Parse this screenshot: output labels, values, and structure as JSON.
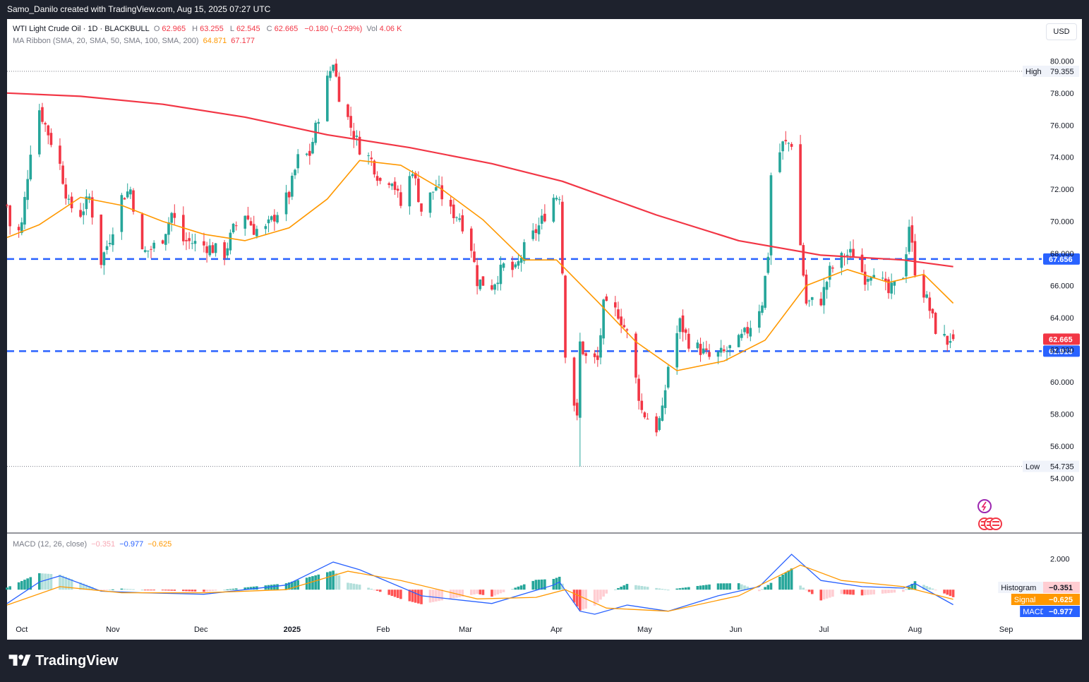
{
  "credit": "Samo_Danilo created with TradingView.com, Aug 15, 2025 07:27 UTC",
  "brand": "TradingView",
  "currency_button": "USD",
  "legend": {
    "symbol": "WTI Light Crude Oil · 1D · BLACKBULL",
    "open_label": "O",
    "open": "62.965",
    "high_label": "H",
    "high": "63.255",
    "low_label": "L",
    "low": "62.545",
    "close_label": "C",
    "close": "62.665",
    "change": "−0.180 (−0.29%)",
    "vol_label": "Vol",
    "vol": "4.06 K",
    "ma_title": "MA Ribbon (SMA, 20, SMA, 50, SMA, 100, SMA, 200)",
    "ma20_value": "64.871",
    "ma200_value": "67.177"
  },
  "macd_legend": {
    "title": "MACD (12, 26, close)",
    "histogram": "−0.351",
    "macd": "−0.977",
    "signal": "−0.625"
  },
  "colors": {
    "up": "#26a69a",
    "down": "#f23645",
    "ma20": "#ff9800",
    "ma200": "#f23645",
    "level": "#2962ff",
    "macd": "#2962ff",
    "signal": "#ff9800"
  },
  "chart_data": {
    "type": "candlestick",
    "price_axis": {
      "ylim": [
        53,
        80.5
      ],
      "ticks": [
        "54.000",
        "56.000",
        "58.000",
        "60.000",
        "62.000",
        "64.000",
        "66.000",
        "68.000",
        "70.000",
        "72.000",
        "74.000",
        "76.000",
        "78.000",
        "80.000"
      ]
    },
    "x_ticks": [
      "Oct",
      "Nov",
      "Dec",
      "2025",
      "Feb",
      "Mar",
      "Apr",
      "May",
      "Jun",
      "Jul",
      "Aug",
      "Sep"
    ],
    "series_labels": {
      "high": {
        "label": "High",
        "value": 79.355,
        "text": "79.355"
      },
      "low": {
        "label": "Low",
        "value": 54.735,
        "text": "54.735"
      },
      "last": {
        "value": 62.665,
        "text": "62.665"
      },
      "ma200": {
        "value": 67.177
      }
    },
    "horizontal_levels": [
      {
        "value": 67.656,
        "text": "67.656"
      },
      {
        "value": 61.913,
        "text": "61.913"
      }
    ],
    "close_path": [
      [
        "2024-09-26",
        71.0
      ],
      [
        "2024-09-28",
        68.5
      ],
      [
        "2024-10-01",
        69.8
      ],
      [
        "2024-10-04",
        74.5
      ],
      [
        "2024-10-07",
        77.0
      ],
      [
        "2024-10-10",
        75.5
      ],
      [
        "2024-10-14",
        73.5
      ],
      [
        "2024-10-17",
        71.0
      ],
      [
        "2024-10-21",
        70.5
      ],
      [
        "2024-10-24",
        71.5
      ],
      [
        "2024-10-28",
        67.5
      ],
      [
        "2024-10-31",
        69.0
      ],
      [
        "2024-11-04",
        71.5
      ],
      [
        "2024-11-07",
        72.0
      ],
      [
        "2024-11-11",
        68.0
      ],
      [
        "2024-11-14",
        68.3
      ],
      [
        "2024-11-18",
        69.0
      ],
      [
        "2024-11-21",
        70.5
      ],
      [
        "2024-11-25",
        68.8
      ],
      [
        "2024-11-28",
        68.7
      ],
      [
        "2024-12-02",
        68.5
      ],
      [
        "2024-12-05",
        68.3
      ],
      [
        "2024-12-09",
        68.0
      ],
      [
        "2024-12-12",
        69.5
      ],
      [
        "2024-12-16",
        70.5
      ],
      [
        "2024-12-19",
        69.5
      ],
      [
        "2024-12-23",
        69.5
      ],
      [
        "2024-12-27",
        70.6
      ],
      [
        "2024-12-31",
        71.7
      ],
      [
        "2025-01-03",
        73.9
      ],
      [
        "2025-01-07",
        74.2
      ],
      [
        "2025-01-10",
        76.6
      ],
      [
        "2025-01-13",
        78.8
      ],
      [
        "2025-01-15",
        80.0
      ],
      [
        "2025-01-17",
        77.9
      ],
      [
        "2025-01-21",
        75.9
      ],
      [
        "2025-01-24",
        74.6
      ],
      [
        "2025-01-28",
        73.8
      ],
      [
        "2025-01-31",
        72.5
      ],
      [
        "2025-02-04",
        72.7
      ],
      [
        "2025-02-07",
        71.0
      ],
      [
        "2025-02-11",
        73.3
      ],
      [
        "2025-02-14",
        70.7
      ],
      [
        "2025-02-19",
        72.2
      ],
      [
        "2025-02-24",
        70.6
      ],
      [
        "2025-02-27",
        70.3
      ],
      [
        "2025-03-03",
        68.4
      ],
      [
        "2025-03-05",
        66.3
      ],
      [
        "2025-03-10",
        66.0
      ],
      [
        "2025-03-14",
        67.2
      ],
      [
        "2025-03-18",
        66.9
      ],
      [
        "2025-03-21",
        68.3
      ],
      [
        "2025-03-26",
        69.7
      ],
      [
        "2025-03-31",
        71.5
      ],
      [
        "2025-04-02",
        71.7
      ],
      [
        "2025-04-03",
        66.9
      ],
      [
        "2025-04-04",
        61.9
      ],
      [
        "2025-04-08",
        57.6
      ],
      [
        "2025-04-09",
        62.4
      ],
      [
        "2025-04-11",
        61.5
      ],
      [
        "2025-04-15",
        61.3
      ],
      [
        "2025-04-17",
        64.7
      ],
      [
        "2025-04-22",
        64.3
      ],
      [
        "2025-04-25",
        63.0
      ],
      [
        "2025-04-30",
        58.2
      ],
      [
        "2025-05-05",
        57.1
      ],
      [
        "2025-05-07",
        58.1
      ],
      [
        "2025-05-09",
        61.0
      ],
      [
        "2025-05-13",
        63.7
      ],
      [
        "2025-05-16",
        62.5
      ],
      [
        "2025-05-20",
        62.0
      ],
      [
        "2025-05-23",
        61.5
      ],
      [
        "2025-05-28",
        61.8
      ],
      [
        "2025-06-02",
        62.5
      ],
      [
        "2025-06-05",
        63.2
      ],
      [
        "2025-06-10",
        65.0
      ],
      [
        "2025-06-12",
        68.0
      ],
      [
        "2025-06-13",
        72.9
      ],
      [
        "2025-06-17",
        74.8
      ],
      [
        "2025-06-20",
        74.9
      ],
      [
        "2025-06-23",
        68.5
      ],
      [
        "2025-06-25",
        64.9
      ],
      [
        "2025-06-30",
        65.1
      ],
      [
        "2025-07-03",
        66.9
      ],
      [
        "2025-07-08",
        67.9
      ],
      [
        "2025-07-11",
        68.0
      ],
      [
        "2025-07-15",
        66.5
      ],
      [
        "2025-07-18",
        67.1
      ],
      [
        "2025-07-23",
        65.5
      ],
      [
        "2025-07-28",
        66.7
      ],
      [
        "2025-07-30",
        69.8
      ],
      [
        "2025-08-01",
        67.0
      ],
      [
        "2025-08-05",
        65.1
      ],
      [
        "2025-08-08",
        63.3
      ],
      [
        "2025-08-12",
        62.5
      ],
      [
        "2025-08-14",
        63.0
      ]
    ],
    "ma20": [
      [
        "2024-09-26",
        69.0
      ],
      [
        "2024-10-07",
        69.8
      ],
      [
        "2024-10-21",
        71.5
      ],
      [
        "2024-11-04",
        71.0
      ],
      [
        "2024-11-18",
        70.0
      ],
      [
        "2024-12-02",
        69.2
      ],
      [
        "2024-12-16",
        68.8
      ],
      [
        "2024-12-31",
        69.6
      ],
      [
        "2025-01-13",
        71.4
      ],
      [
        "2025-01-24",
        73.8
      ],
      [
        "2025-02-07",
        73.5
      ],
      [
        "2025-02-21",
        72.0
      ],
      [
        "2025-03-07",
        70.1
      ],
      [
        "2025-03-21",
        67.6
      ],
      [
        "2025-04-01",
        67.6
      ],
      [
        "2025-04-15",
        65.0
      ],
      [
        "2025-04-28",
        62.5
      ],
      [
        "2025-05-12",
        60.7
      ],
      [
        "2025-05-28",
        61.3
      ],
      [
        "2025-06-11",
        62.6
      ],
      [
        "2025-06-25",
        66.0
      ],
      [
        "2025-07-09",
        67.0
      ],
      [
        "2025-07-23",
        66.2
      ],
      [
        "2025-08-04",
        66.7
      ],
      [
        "2025-08-14",
        64.9
      ]
    ],
    "ma200": [
      [
        "2024-09-26",
        78.0
      ],
      [
        "2024-10-21",
        77.8
      ],
      [
        "2024-11-18",
        77.3
      ],
      [
        "2024-12-16",
        76.5
      ],
      [
        "2025-01-13",
        75.4
      ],
      [
        "2025-02-10",
        74.6
      ],
      [
        "2025-03-10",
        73.6
      ],
      [
        "2025-04-03",
        72.5
      ],
      [
        "2025-05-05",
        70.4
      ],
      [
        "2025-06-02",
        68.8
      ],
      [
        "2025-06-30",
        67.9
      ],
      [
        "2025-07-28",
        67.6
      ],
      [
        "2025-08-14",
        67.18
      ]
    ],
    "period_high": {
      "date": "2025-01-15",
      "value": 79.355
    },
    "period_low": {
      "date": "2025-04-09",
      "value": 54.735
    },
    "macd_panel": {
      "ylim": [
        -1.6,
        3.0
      ],
      "ticks": [
        "2.000",
        "0.000"
      ],
      "macd_line": [
        [
          "2024-09-26",
          -0.9
        ],
        [
          "2024-10-07",
          0.5
        ],
        [
          "2024-10-14",
          0.9
        ],
        [
          "2024-10-28",
          -0.1
        ],
        [
          "2024-11-11",
          -0.2
        ],
        [
          "2024-12-02",
          -0.3
        ],
        [
          "2024-12-30",
          0.3
        ],
        [
          "2025-01-15",
          1.8
        ],
        [
          "2025-01-24",
          1.3
        ],
        [
          "2025-02-14",
          -0.4
        ],
        [
          "2025-03-10",
          -0.9
        ],
        [
          "2025-03-31",
          0.3
        ],
        [
          "2025-04-02",
          0.5
        ],
        [
          "2025-04-09",
          -1.4
        ],
        [
          "2025-04-14",
          -1.6
        ],
        [
          "2025-04-25",
          -1.0
        ],
        [
          "2025-05-09",
          -1.4
        ],
        [
          "2025-05-26",
          -0.4
        ],
        [
          "2025-06-09",
          0.2
        ],
        [
          "2025-06-20",
          2.3
        ],
        [
          "2025-06-30",
          0.6
        ],
        [
          "2025-07-14",
          0.2
        ],
        [
          "2025-07-28",
          0.1
        ],
        [
          "2025-08-01",
          0.4
        ],
        [
          "2025-08-14",
          -0.98
        ]
      ],
      "signal_line": [
        [
          "2024-09-26",
          -1.0
        ],
        [
          "2024-10-14",
          0.2
        ],
        [
          "2024-11-04",
          -0.2
        ],
        [
          "2024-12-02",
          -0.2
        ],
        [
          "2024-12-30",
          0.0
        ],
        [
          "2025-01-20",
          1.2
        ],
        [
          "2025-02-07",
          0.6
        ],
        [
          "2025-03-05",
          -0.6
        ],
        [
          "2025-03-25",
          -0.5
        ],
        [
          "2025-04-04",
          0.0
        ],
        [
          "2025-04-18",
          -1.2
        ],
        [
          "2025-05-09",
          -1.4
        ],
        [
          "2025-06-02",
          -0.4
        ],
        [
          "2025-06-23",
          1.6
        ],
        [
          "2025-07-07",
          0.6
        ],
        [
          "2025-07-28",
          0.2
        ],
        [
          "2025-08-14",
          -0.63
        ]
      ]
    }
  }
}
